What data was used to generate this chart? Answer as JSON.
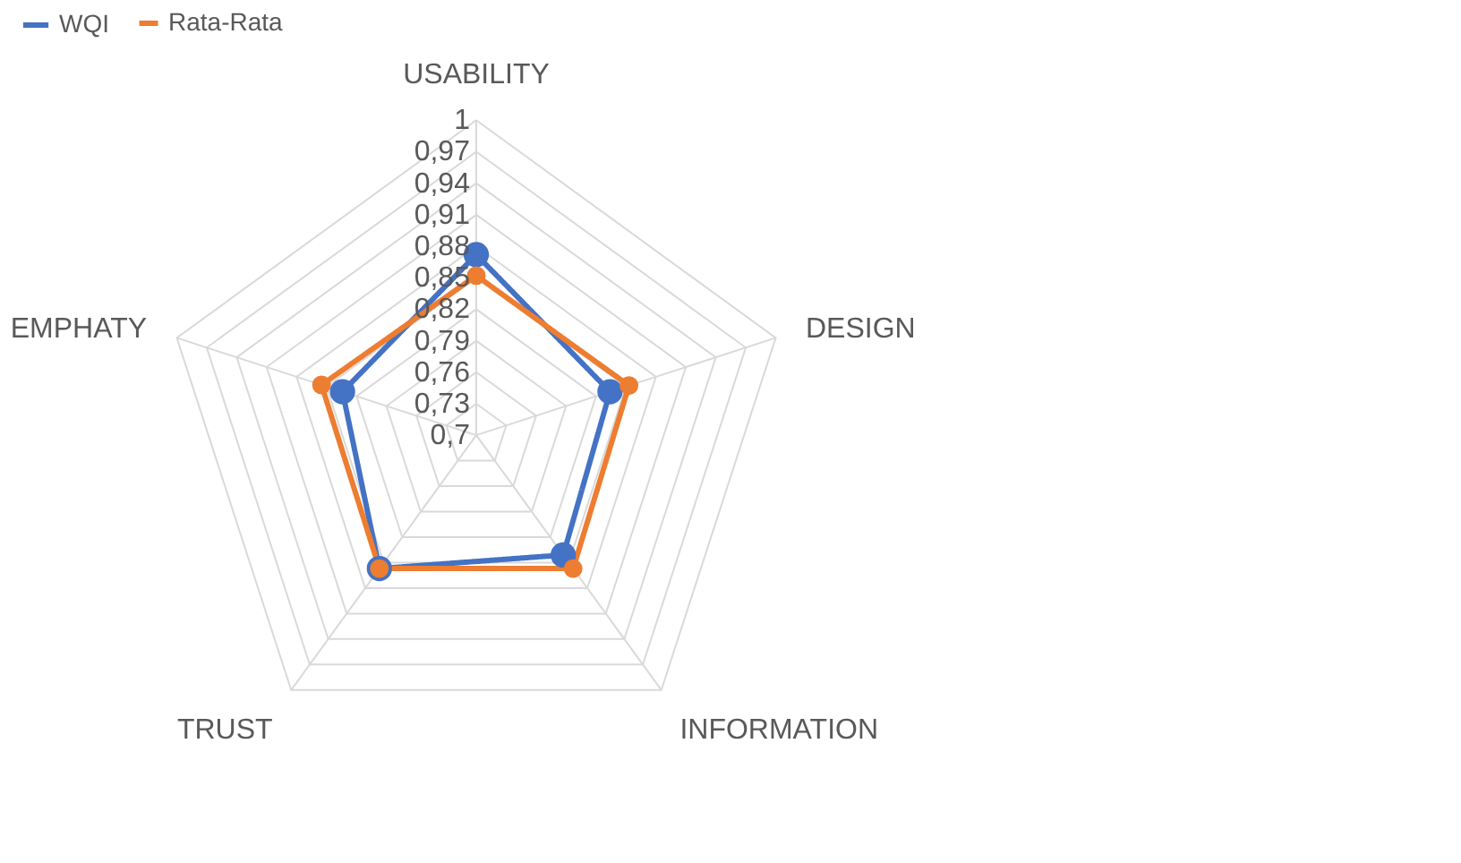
{
  "chart_data": {
    "type": "radar",
    "categories": [
      "USABILITY",
      "DESIGN",
      "INFORMATION",
      "TRUST",
      "EMPHATY"
    ],
    "series": [
      {
        "name": "WQI",
        "color": "#4472c4",
        "values": [
          0.872,
          0.834,
          0.841,
          0.857,
          0.834
        ]
      },
      {
        "name": "Rata-Rata",
        "color": "#ed7d31",
        "values": [
          0.852,
          0.853,
          0.857,
          0.857,
          0.855
        ]
      }
    ],
    "ylim": [
      0.7,
      1
    ],
    "yticks": [
      {
        "value": 0.7,
        "label": "0,7"
      },
      {
        "value": 0.73,
        "label": "0,73"
      },
      {
        "value": 0.76,
        "label": "0,76"
      },
      {
        "value": 0.79,
        "label": "0,79"
      },
      {
        "value": 0.82,
        "label": "0,82"
      },
      {
        "value": 0.85,
        "label": "0,85"
      },
      {
        "value": 0.88,
        "label": "0,88"
      },
      {
        "value": 0.91,
        "label": "0,91"
      },
      {
        "value": 0.94,
        "label": "0,94"
      },
      {
        "value": 0.97,
        "label": "0,97"
      },
      {
        "value": 1,
        "label": "1"
      }
    ],
    "grid": true,
    "legend": "top",
    "marker": "circle",
    "line_style": "solid"
  }
}
